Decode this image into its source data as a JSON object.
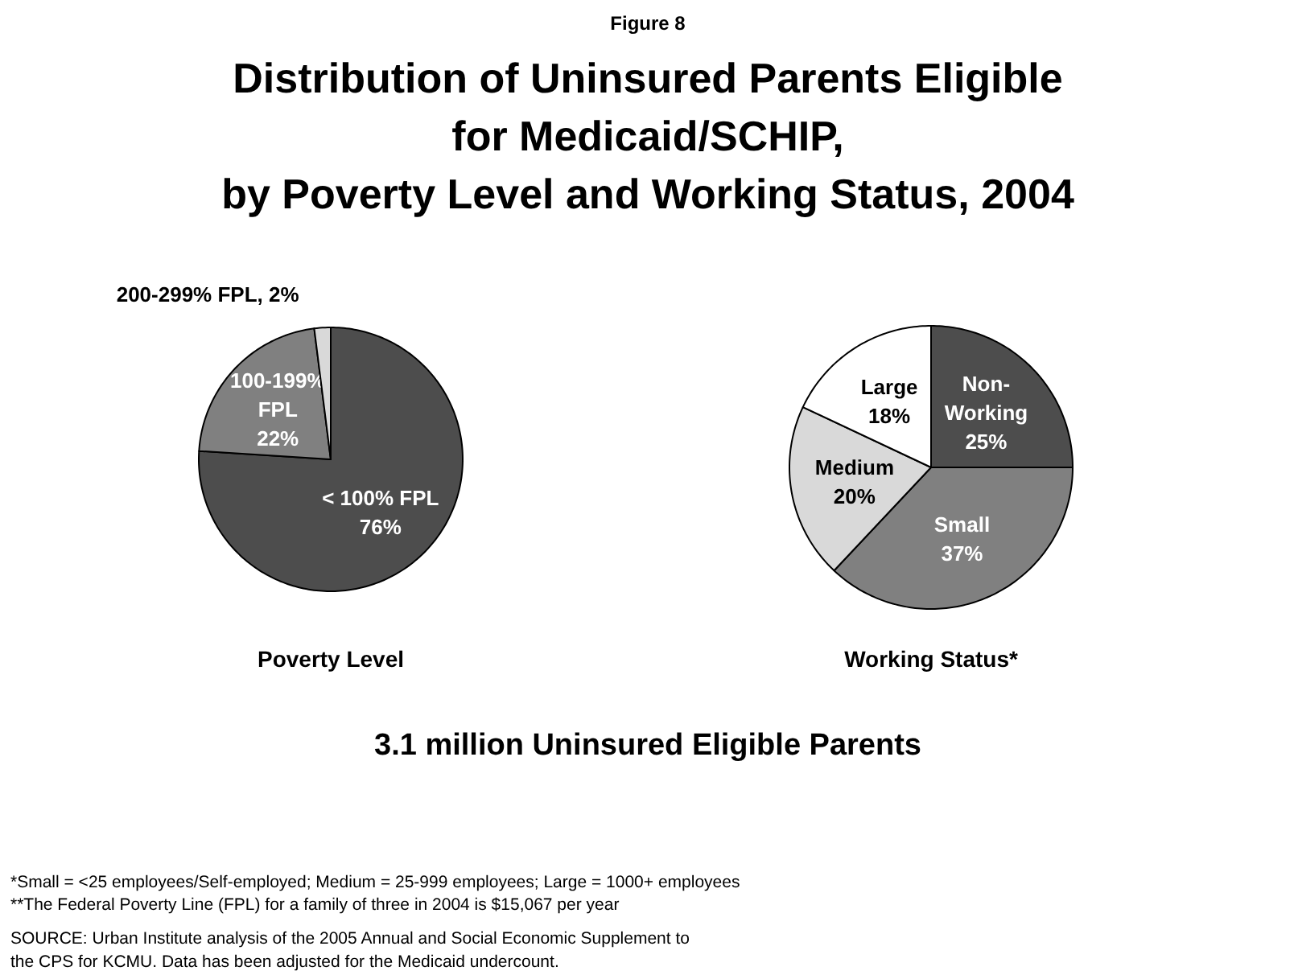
{
  "chart_data": [
    {
      "type": "other",
      "title": "Distribution of Uninsured Parents Eligible\nfor Medicaid/SCHIP,\nby Poverty Level and Working Status, 2004",
      "subtitle": "Figure 8",
      "annotations": [
        "3.1 million Uninsured Eligible Parents",
        "*Small = <25 employees/Self-employed; Medium = 25-999 employees; Large = 1000+ employees",
        "**The Federal Poverty Line (FPL) for a family of three in 2004 is $15,067 per year",
        "SOURCE:  Urban Institute analysis of the 2005 Annual and Social Economic Supplement to\nthe CPS for KCMU. Data has been adjusted for the Medicaid undercount."
      ]
    },
    {
      "type": "pie",
      "title": "Poverty Level",
      "categories": [
        "< 100% FPL",
        "100-199%\nFPL",
        "200-299% FPL"
      ],
      "values": [
        76,
        22,
        2
      ],
      "colors": [
        "#4d4d4d",
        "#808080",
        "#d9d9d9"
      ],
      "value_labels": [
        "76%",
        "22%",
        "2%"
      ]
    },
    {
      "type": "pie",
      "title": "Working Status*",
      "categories": [
        "Non-\nWorking",
        "Small",
        "Medium",
        "Large"
      ],
      "values": [
        25,
        37,
        20,
        18
      ],
      "colors": [
        "#4d4d4d",
        "#808080",
        "#d9d9d9",
        "#ffffff"
      ],
      "value_labels": [
        "25%",
        "37%",
        "20%",
        "18%"
      ]
    }
  ]
}
